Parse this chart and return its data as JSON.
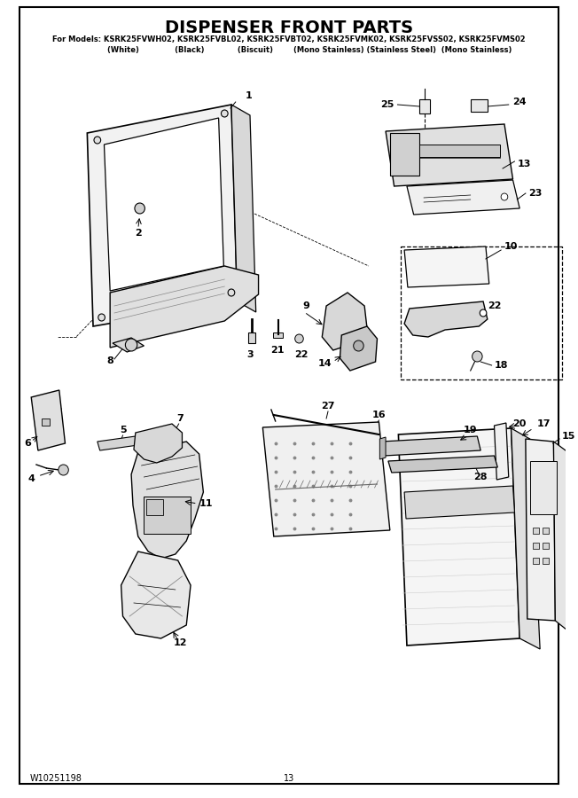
{
  "title": "DISPENSER FRONT PARTS",
  "subtitle_line1": "For Models: KSRK25FVWH02, KSRK25FVBL02, KSRK25FVBT02, KSRK25FVMK02, KSRK25FVSS02, KSRK25FVMS02",
  "subtitle_line2": "                (White)              (Black)             (Biscuit)        (Mono Stainless) (Stainless Steel)  (Mono Stainless)",
  "footer_left": "W10251198",
  "footer_center": "13",
  "bg": "#ffffff",
  "fg": "#000000",
  "fig_width": 6.52,
  "fig_height": 9.0,
  "dpi": 100
}
